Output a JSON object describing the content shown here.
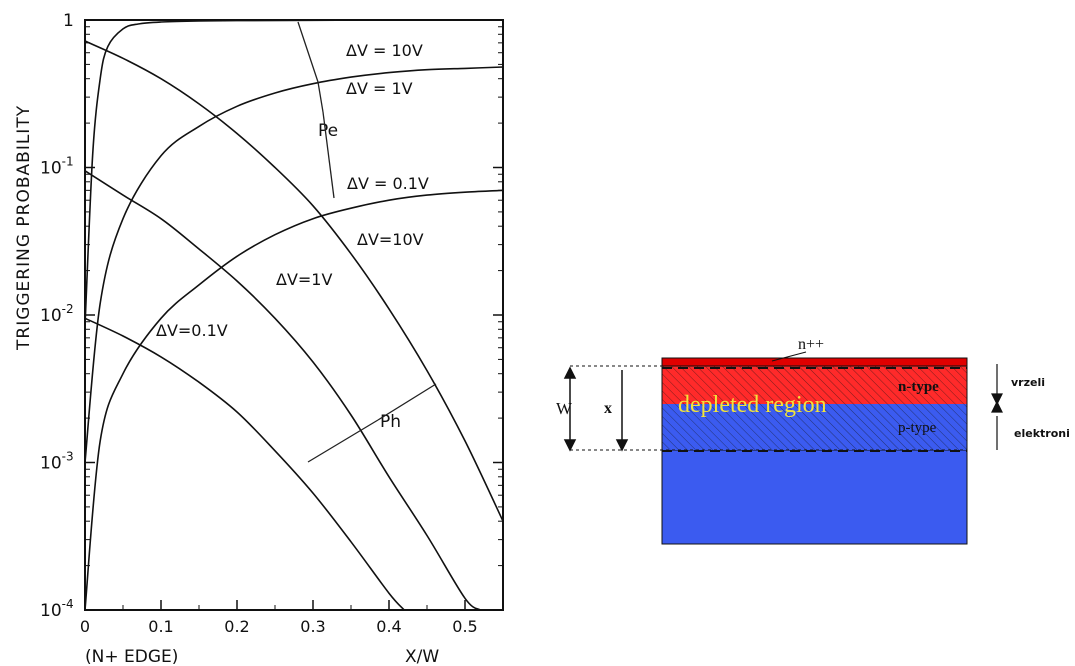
{
  "chart_data": {
    "type": "line",
    "ylabel": "TRIGGERING  PROBABILITY",
    "xlabel": "X/W",
    "x_edge_note": "(N+ EDGE)",
    "xlim": [
      0,
      0.55
    ],
    "ylim": [
      0.0001,
      1
    ],
    "yscale": "log",
    "x_ticks": [
      "0",
      "0.1",
      "0.2",
      "0.3",
      "0.4",
      "0.5"
    ],
    "x_tick_values": [
      0,
      0.1,
      0.2,
      0.3,
      0.4,
      0.5
    ],
    "y_ticks": [
      {
        "mant": "10",
        "exp": "-4",
        "value": 0.0001
      },
      {
        "mant": "10",
        "exp": "-3",
        "value": 0.001
      },
      {
        "mant": "10",
        "exp": "-2",
        "value": 0.01
      },
      {
        "mant": "10",
        "exp": "-1",
        "value": 0.1
      },
      {
        "mant": "1",
        "exp": "",
        "value": 1
      }
    ],
    "series": [
      {
        "family": "Pe",
        "dv": "ΔV=10V",
        "x": [
          0,
          0.01,
          0.02,
          0.03,
          0.05,
          0.07,
          0.1,
          0.15,
          0.2,
          0.3,
          0.4,
          0.55
        ],
        "y": [
          0.0085,
          0.12,
          0.4,
          0.66,
          0.87,
          0.94,
          0.97,
          0.985,
          0.99,
          0.995,
          0.998,
          1.0
        ]
      },
      {
        "family": "Pe",
        "dv": "ΔV=1V",
        "x": [
          0,
          0.02,
          0.05,
          0.1,
          0.15,
          0.2,
          0.25,
          0.3,
          0.35,
          0.4,
          0.45,
          0.5,
          0.55
        ],
        "y": [
          0.001,
          0.012,
          0.045,
          0.12,
          0.19,
          0.26,
          0.32,
          0.37,
          0.41,
          0.44,
          0.46,
          0.47,
          0.48
        ]
      },
      {
        "family": "Pe",
        "dv": "ΔV=0.1V",
        "x": [
          0,
          0.02,
          0.05,
          0.1,
          0.15,
          0.2,
          0.25,
          0.3,
          0.35,
          0.4,
          0.45,
          0.5,
          0.55
        ],
        "y": [
          0.0001,
          0.0014,
          0.004,
          0.0095,
          0.016,
          0.025,
          0.035,
          0.045,
          0.053,
          0.06,
          0.065,
          0.068,
          0.07
        ]
      },
      {
        "family": "Ph",
        "dv": "ΔV=10V",
        "x": [
          0,
          0.05,
          0.1,
          0.15,
          0.2,
          0.25,
          0.3,
          0.35,
          0.4,
          0.45,
          0.5,
          0.55
        ],
        "y": [
          0.72,
          0.55,
          0.4,
          0.27,
          0.17,
          0.1,
          0.055,
          0.026,
          0.011,
          0.0042,
          0.0014,
          0.0004
        ]
      },
      {
        "family": "Ph",
        "dv": "ΔV=1V",
        "x": [
          0,
          0.05,
          0.1,
          0.15,
          0.2,
          0.25,
          0.3,
          0.35,
          0.4,
          0.45,
          0.5,
          0.52
        ],
        "y": [
          0.095,
          0.065,
          0.045,
          0.028,
          0.017,
          0.0095,
          0.0048,
          0.0021,
          0.0008,
          0.00032,
          0.00012,
          0.0001
        ]
      },
      {
        "family": "Ph",
        "dv": "ΔV=0.1V",
        "x": [
          0,
          0.05,
          0.1,
          0.15,
          0.2,
          0.25,
          0.3,
          0.35,
          0.4,
          0.42
        ],
        "y": [
          0.0095,
          0.0072,
          0.0052,
          0.0035,
          0.0022,
          0.0012,
          0.00062,
          0.00029,
          0.00013,
          0.0001
        ]
      }
    ],
    "labels": {
      "pe": "Pe",
      "ph": "Ph",
      "dv10_pe": "ΔV = 10V",
      "dv1_pe": "ΔV = 1V",
      "dv01_pe": "ΔV = 0.1V",
      "dv10_ph": "ΔV=10V",
      "dv1_ph": "ΔV=1V",
      "dv01_ph": "ΔV=0.1V"
    }
  },
  "diagram": {
    "n_plus_plus": "n++",
    "n_type": "n-type",
    "p_type": "p-type",
    "depleted": "depleted region",
    "w_label": "W",
    "x_label": "x",
    "vrzeli": "vrzeli",
    "elektroni": "elektroni",
    "colors": {
      "n_plus_plus": "#e00000",
      "n_region": "#ff2a2a",
      "p_region": "#3b5bf0",
      "bulk": "#3b5bf0",
      "depleted_text": "#f2e43a"
    }
  }
}
